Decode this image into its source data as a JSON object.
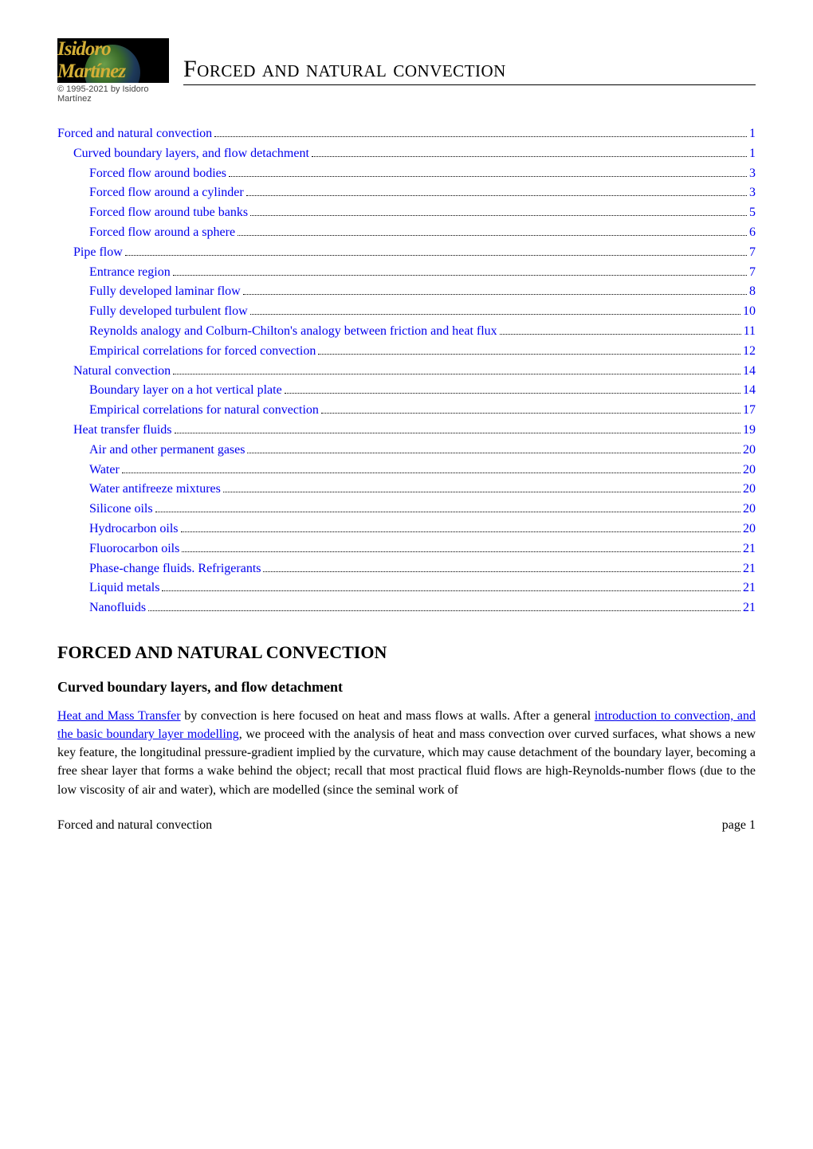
{
  "logo": {
    "text": "Isidoro Martínez",
    "copyright": "© 1995-2021 by Isidoro Martínez"
  },
  "document_title": "Forced and natural convection",
  "colors": {
    "link": "#0000ee",
    "text": "#000000",
    "background": "#ffffff"
  },
  "typography": {
    "body_font": "Times New Roman",
    "title_fontsize": 30,
    "heading_fontsize": 22,
    "subheading_fontsize": 18,
    "body_fontsize": 16
  },
  "toc": [
    {
      "level": 0,
      "label": "Forced and natural convection",
      "page": "1"
    },
    {
      "level": 1,
      "label": "Curved boundary layers, and flow detachment",
      "page": "1"
    },
    {
      "level": 2,
      "label": "Forced flow around bodies",
      "page": "3"
    },
    {
      "level": 2,
      "label": "Forced flow around a cylinder",
      "page": "3"
    },
    {
      "level": 2,
      "label": "Forced flow around tube banks",
      "page": "5"
    },
    {
      "level": 2,
      "label": "Forced flow around a sphere",
      "page": "6"
    },
    {
      "level": 1,
      "label": "Pipe flow",
      "page": "7"
    },
    {
      "level": 2,
      "label": "Entrance region",
      "page": "7"
    },
    {
      "level": 2,
      "label": "Fully developed laminar flow",
      "page": "8"
    },
    {
      "level": 2,
      "label": "Fully developed turbulent flow",
      "page": "10"
    },
    {
      "level": 2,
      "label": "Reynolds analogy and Colburn-Chilton's analogy between friction and heat flux",
      "page": "11"
    },
    {
      "level": 2,
      "label": "Empirical correlations for forced convection",
      "page": "12"
    },
    {
      "level": 1,
      "label": "Natural convection",
      "page": "14"
    },
    {
      "level": 2,
      "label": "Boundary layer on a hot vertical plate",
      "page": "14"
    },
    {
      "level": 2,
      "label": "Empirical correlations for natural convection",
      "page": "17"
    },
    {
      "level": 1,
      "label": "Heat transfer fluids",
      "page": "19"
    },
    {
      "level": 2,
      "label": "Air and other permanent gases",
      "page": "20"
    },
    {
      "level": 2,
      "label": "Water",
      "page": "20"
    },
    {
      "level": 2,
      "label": "Water antifreeze mixtures",
      "page": "20"
    },
    {
      "level": 2,
      "label": "Silicone oils",
      "page": "20"
    },
    {
      "level": 2,
      "label": "Hydrocarbon oils",
      "page": "20"
    },
    {
      "level": 2,
      "label": "Fluorocarbon oils",
      "page": "21"
    },
    {
      "level": 2,
      "label": "Phase-change fluids. Refrigerants",
      "page": "21"
    },
    {
      "level": 2,
      "label": "Liquid metals",
      "page": "21"
    },
    {
      "level": 2,
      "label": "Nanofluids",
      "page": "21"
    }
  ],
  "section": {
    "heading": "FORCED AND NATURAL CONVECTION",
    "subheading": "Curved boundary layers, and flow detachment",
    "paragraph_parts": {
      "link1": "Heat and Mass Transfer",
      "text1": " by convection is here focused on heat and mass flows at walls. After a general ",
      "link2": "introduction to convection, and the basic boundary layer modelling",
      "text2": ", we proceed with the analysis of heat and mass convection over curved surfaces, what shows a new key feature, the longitudinal pressure-gradient implied by the curvature, which may cause detachment of the boundary layer, becoming a free shear layer that forms a wake behind the object; recall that most practical fluid flows are high-Reynolds-number flows (due to the low viscosity of air and water), which are modelled (since the seminal work of"
    }
  },
  "footer": {
    "left": "Forced and natural convection",
    "right": "page 1"
  }
}
